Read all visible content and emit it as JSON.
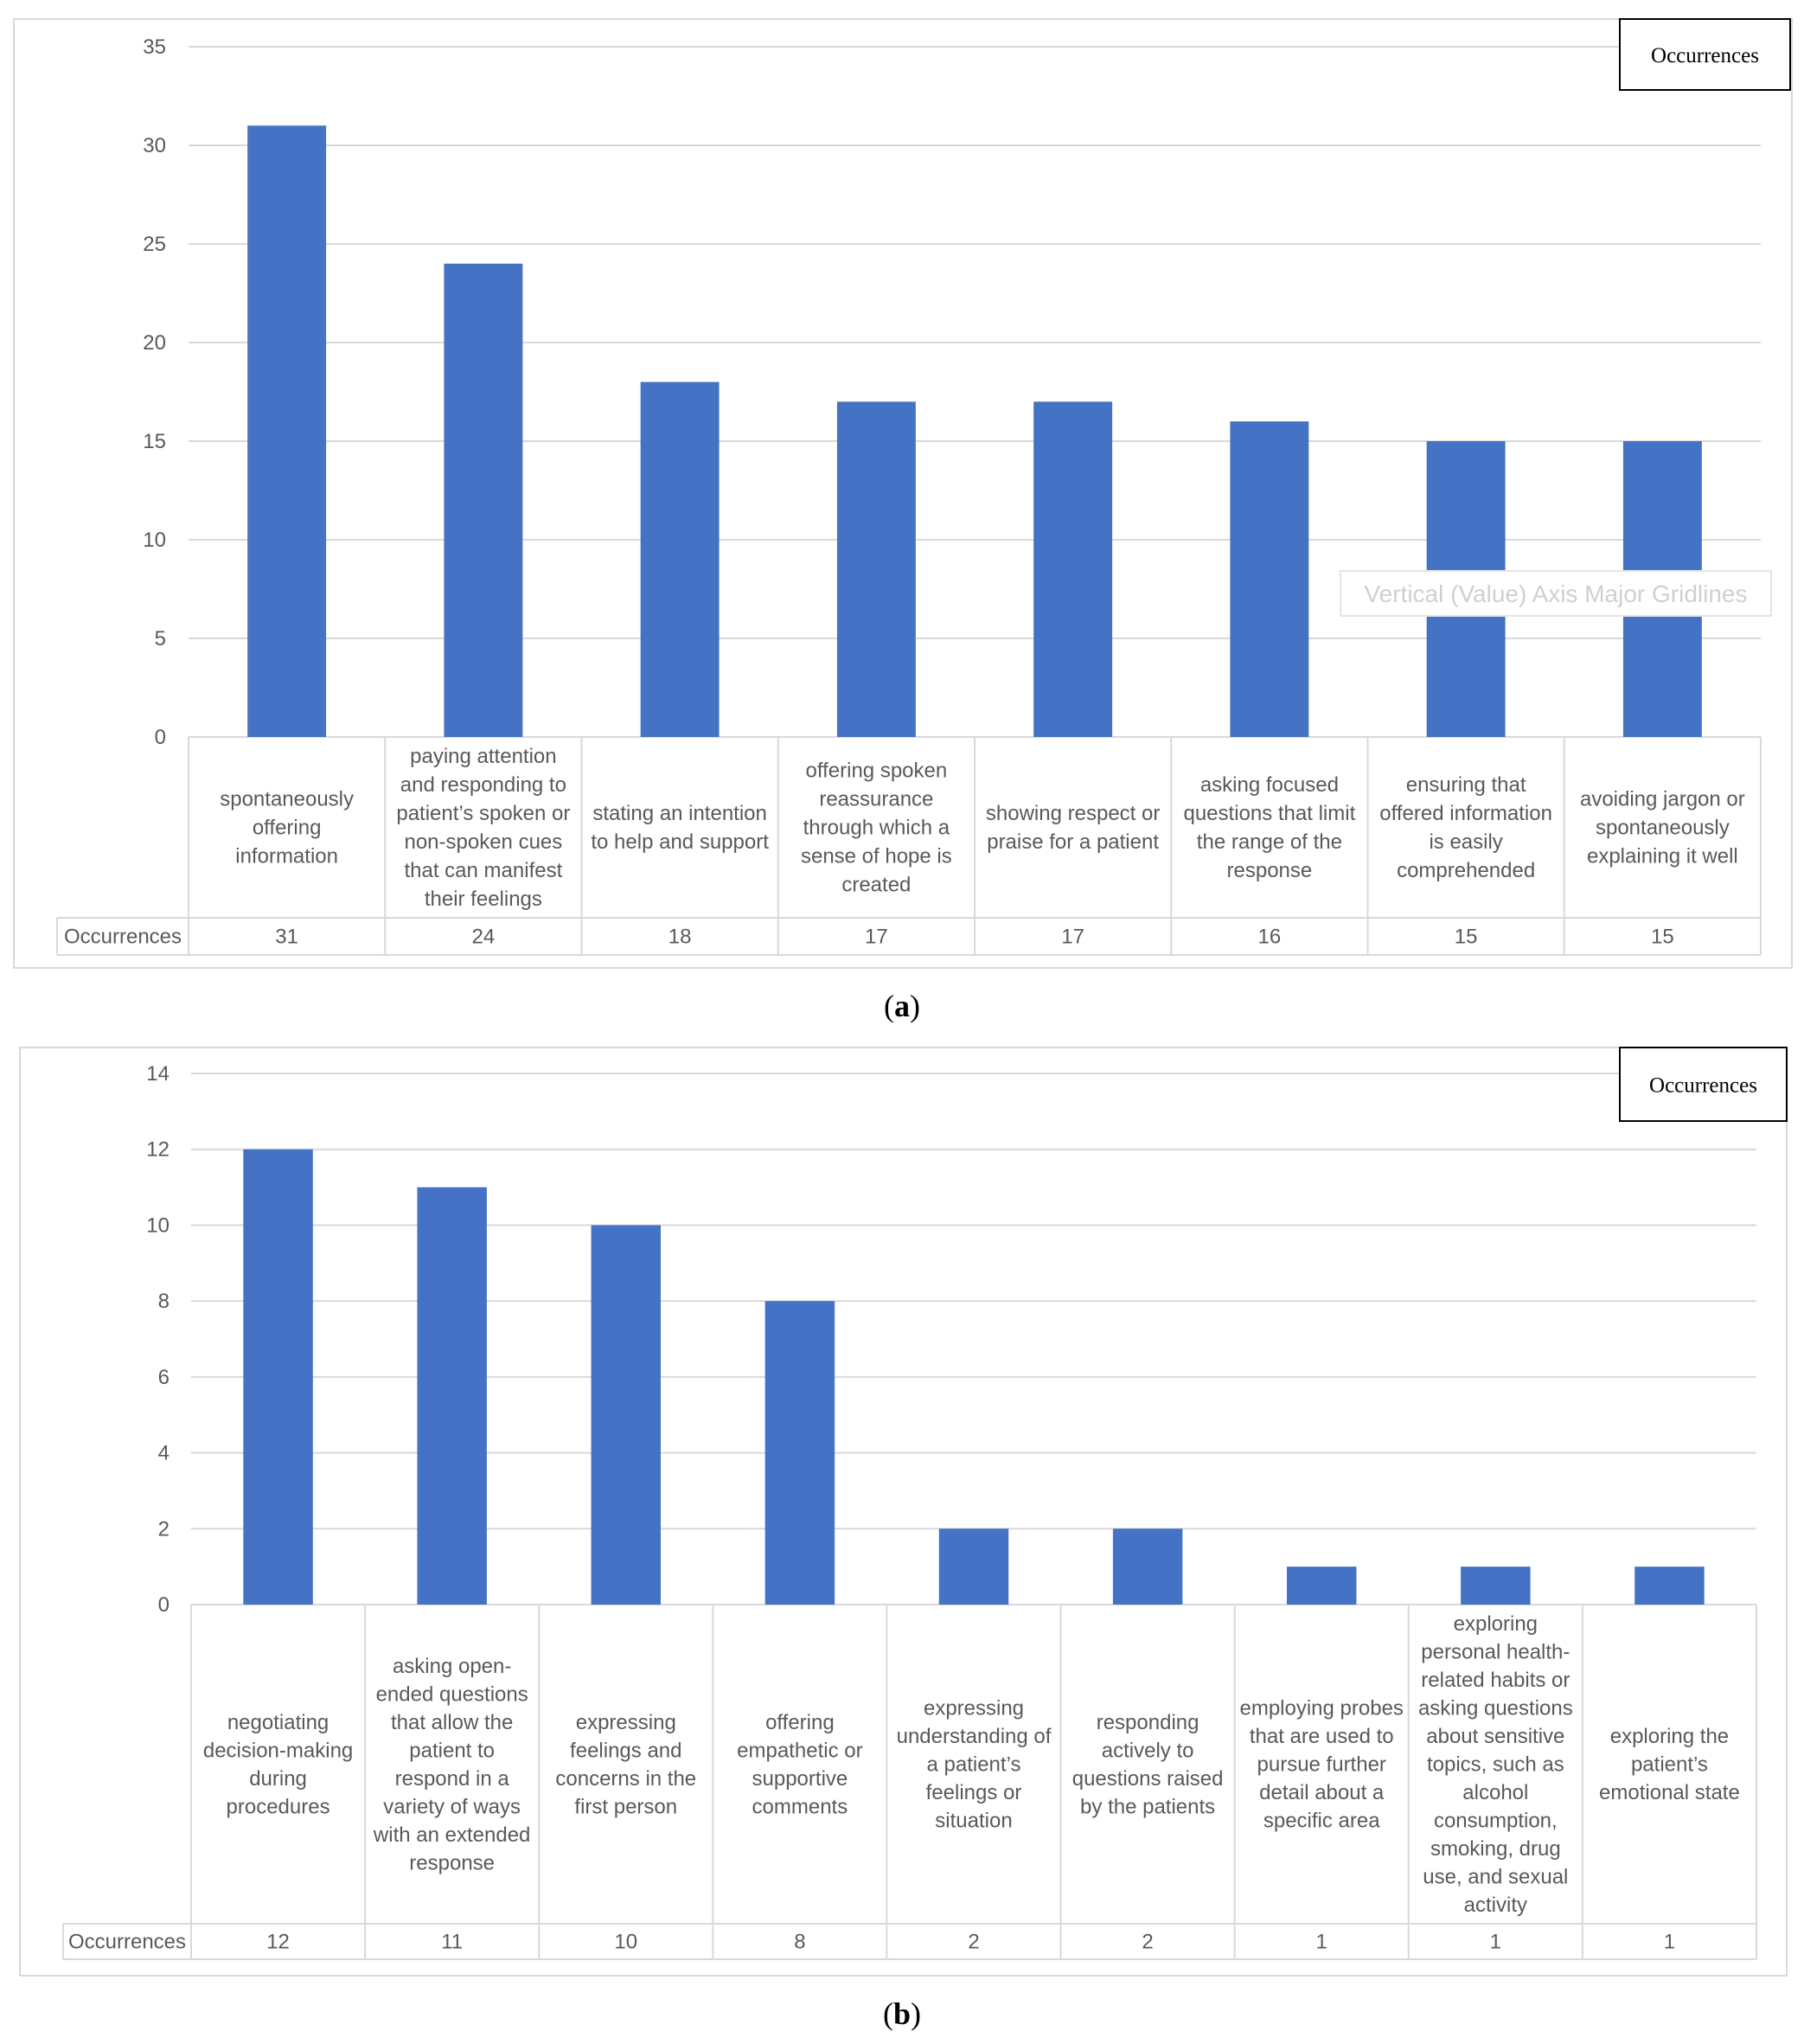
{
  "chart_data": [
    {
      "type": "bar",
      "caption": "(a)",
      "caption_letter": "a",
      "legend": "Occurrences",
      "table_row_label": "Occurrences",
      "ylim": [
        0,
        35
      ],
      "yticks": [
        0,
        5,
        10,
        15,
        20,
        25,
        30,
        35
      ],
      "grid": true,
      "legend_position": "top-right",
      "series": [
        {
          "name": "Occurrences",
          "color": "#4472C4",
          "values": [
            31,
            24,
            18,
            17,
            17,
            16,
            15,
            15
          ]
        }
      ],
      "categories": [
        [
          "spontaneously",
          "offering",
          "information"
        ],
        [
          "paying attention",
          "and responding to",
          "patient’s spoken or",
          "non-spoken cues",
          "that can manifest",
          "their feelings"
        ],
        [
          "stating an intention",
          "to help and support"
        ],
        [
          "offering spoken",
          "reassurance",
          "through which a",
          "sense of hope is",
          "created"
        ],
        [
          "showing respect or",
          "praise for a patient"
        ],
        [
          "asking focused",
          "questions that limit",
          "the range of the",
          "response"
        ],
        [
          "ensuring that",
          "offered information",
          "is easily",
          "comprehended"
        ],
        [
          "avoiding jargon or",
          "spontaneously",
          "explaining it well"
        ]
      ],
      "tooltip": "Vertical (Value) Axis Major Gridlines"
    },
    {
      "type": "bar",
      "caption": "(b)",
      "caption_letter": "b",
      "legend": "Occurrences",
      "table_row_label": "Occurrences",
      "ylim": [
        0,
        14
      ],
      "yticks": [
        0,
        2,
        4,
        6,
        8,
        10,
        12,
        14
      ],
      "grid": true,
      "legend_position": "top-right",
      "series": [
        {
          "name": "Occurrences",
          "color": "#4472C4",
          "values": [
            12,
            11,
            10,
            8,
            2,
            2,
            1,
            1,
            1
          ]
        }
      ],
      "categories": [
        [
          "negotiating",
          "decision-making",
          "during",
          "procedures"
        ],
        [
          "asking open-",
          "ended questions",
          "that allow the",
          "patient to",
          "respond in a",
          "variety of ways",
          "with an extended",
          "response"
        ],
        [
          "expressing",
          "feelings and",
          "concerns in the",
          "first person"
        ],
        [
          "offering",
          "empathetic or",
          "supportive",
          "comments"
        ],
        [
          "expressing",
          "understanding of",
          "a patient’s",
          "feelings or",
          "situation"
        ],
        [
          "responding",
          "actively to",
          "questions raised",
          "by the patients"
        ],
        [
          "employing probes",
          "that are used to",
          "pursue further",
          "detail about a",
          "specific area"
        ],
        [
          "exploring",
          "personal health-",
          "related habits or",
          "asking questions",
          "about sensitive",
          "topics, such as",
          "alcohol",
          "consumption,",
          "smoking, drug",
          "use, and sexual",
          "activity"
        ],
        [
          "exploring the",
          "patient’s",
          "emotional state"
        ]
      ]
    }
  ]
}
